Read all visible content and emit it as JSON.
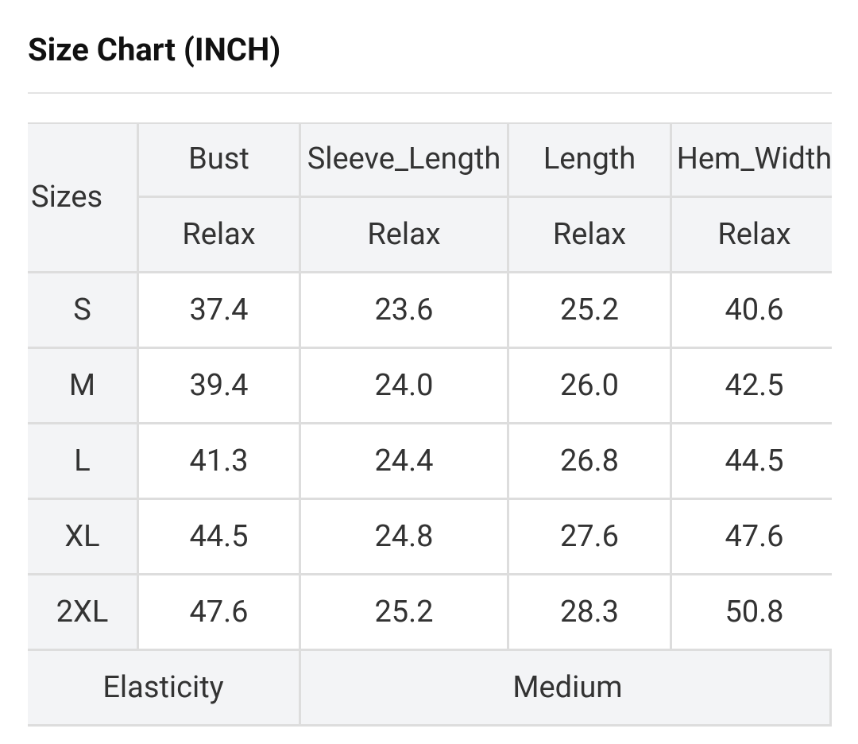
{
  "header": {
    "title": "Size Chart (INCH)"
  },
  "table": {
    "size_header": "Sizes",
    "columns": [
      "Bust",
      "Sleeve_Length",
      "Length",
      "Hem_Width"
    ],
    "sub_header": [
      "Relax",
      "Relax",
      "Relax",
      "Relax"
    ],
    "rows": [
      [
        "S",
        "37.4",
        "23.6",
        "25.2",
        "40.6"
      ],
      [
        "M",
        "39.4",
        "24.0",
        "26.0",
        "42.5"
      ],
      [
        "L",
        "41.3",
        "24.4",
        "26.8",
        "44.5"
      ],
      [
        "XL",
        "44.5",
        "24.8",
        "27.6",
        "47.6"
      ],
      [
        "2XL",
        "47.6",
        "25.2",
        "28.3",
        "50.8"
      ]
    ],
    "footer": {
      "label": "Elasticity",
      "value": "Medium"
    }
  }
}
